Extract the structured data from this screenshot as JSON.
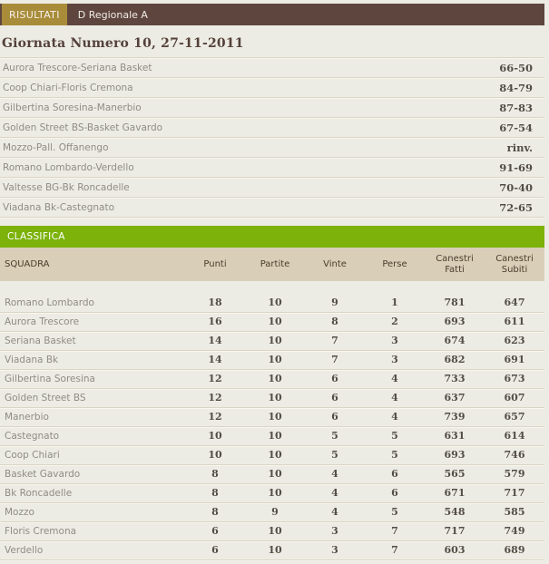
{
  "header": {
    "tab_active": "RISULTATI",
    "tab_secondary": "D Regionale A"
  },
  "results": {
    "title": "Giornata Numero 10, 27-11-2011",
    "matches": [
      {
        "match": "Aurora Trescore-Seriana Basket",
        "score": "66-50"
      },
      {
        "match": "Coop Chiari-Floris Cremona",
        "score": "84-79"
      },
      {
        "match": "Gilbertina Soresina-Manerbio",
        "score": "87-83"
      },
      {
        "match": "Golden Street BS-Basket Gavardo",
        "score": "67-54"
      },
      {
        "match": "Mozzo-Pall. Offanengo",
        "score": "rinv."
      },
      {
        "match": "Romano Lombardo-Verdello",
        "score": "91-69"
      },
      {
        "match": "Valtesse BG-Bk Roncadelle",
        "score": "70-40"
      },
      {
        "match": "Viadana Bk-Castegnato",
        "score": "72-65"
      }
    ]
  },
  "standings": {
    "section_title": "CLASSIFICA",
    "columns": [
      "SQUADRA",
      "Punti",
      "Partite",
      "Vinte",
      "Perse",
      "Canestri Fatti",
      "Canestri Subiti"
    ],
    "rows": [
      {
        "team": "Romano Lombardo",
        "punti": "18",
        "partite": "10",
        "vinte": "9",
        "perse": "1",
        "fatti": "781",
        "subiti": "647"
      },
      {
        "team": "Aurora Trescore",
        "punti": "16",
        "partite": "10",
        "vinte": "8",
        "perse": "2",
        "fatti": "693",
        "subiti": "611"
      },
      {
        "team": "Seriana Basket",
        "punti": "14",
        "partite": "10",
        "vinte": "7",
        "perse": "3",
        "fatti": "674",
        "subiti": "623"
      },
      {
        "team": "Viadana Bk",
        "punti": "14",
        "partite": "10",
        "vinte": "7",
        "perse": "3",
        "fatti": "682",
        "subiti": "691"
      },
      {
        "team": "Gilbertina Soresina",
        "punti": "12",
        "partite": "10",
        "vinte": "6",
        "perse": "4",
        "fatti": "733",
        "subiti": "673"
      },
      {
        "team": "Golden Street BS",
        "punti": "12",
        "partite": "10",
        "vinte": "6",
        "perse": "4",
        "fatti": "637",
        "subiti": "607"
      },
      {
        "team": "Manerbio",
        "punti": "12",
        "partite": "10",
        "vinte": "6",
        "perse": "4",
        "fatti": "739",
        "subiti": "657"
      },
      {
        "team": "Castegnato",
        "punti": "10",
        "partite": "10",
        "vinte": "5",
        "perse": "5",
        "fatti": "631",
        "subiti": "614"
      },
      {
        "team": "Coop Chiari",
        "punti": "10",
        "partite": "10",
        "vinte": "5",
        "perse": "5",
        "fatti": "693",
        "subiti": "746"
      },
      {
        "team": "Basket Gavardo",
        "punti": "8",
        "partite": "10",
        "vinte": "4",
        "perse": "6",
        "fatti": "565",
        "subiti": "579"
      },
      {
        "team": "Bk Roncadelle",
        "punti": "8",
        "partite": "10",
        "vinte": "4",
        "perse": "6",
        "fatti": "671",
        "subiti": "717"
      },
      {
        "team": "Mozzo",
        "punti": "8",
        "partite": "9",
        "vinte": "4",
        "perse": "5",
        "fatti": "548",
        "subiti": "585"
      },
      {
        "team": "Floris Cremona",
        "punti": "6",
        "partite": "10",
        "vinte": "3",
        "perse": "7",
        "fatti": "717",
        "subiti": "749"
      },
      {
        "team": "Verdello",
        "punti": "6",
        "partite": "10",
        "vinte": "3",
        "perse": "7",
        "fatti": "603",
        "subiti": "689"
      }
    ]
  },
  "colors": {
    "page_background": "#edece4",
    "topbar_brown": "#5e463e",
    "active_tab_gold": "#a98c3a",
    "classifica_green": "#7cb20a",
    "table_header_tan": "#d9cfb8",
    "heading_brown": "#53413a",
    "muted_text_gray": "#8e8c84",
    "number_text": "#524e46",
    "separator": "#d9d5c6"
  }
}
